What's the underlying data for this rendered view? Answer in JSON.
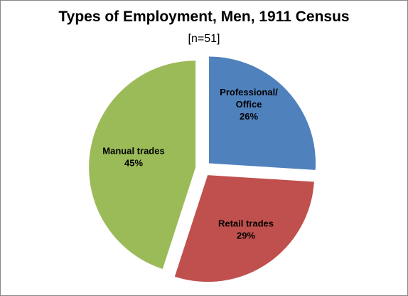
{
  "chart_data": {
    "type": "pie",
    "title": "Types of Employment, Men, 1911 Census",
    "subtitle": "[n=51]",
    "slices": [
      {
        "label_lines": [
          "Professional/",
          "Office"
        ],
        "value": 26,
        "value_label": "26%",
        "color": "#4F81BD",
        "exploded": true
      },
      {
        "label_lines": [
          "Retail trades"
        ],
        "value": 29,
        "value_label": "29%",
        "color": "#C0504D",
        "exploded": true
      },
      {
        "label_lines": [
          "Manual trades"
        ],
        "value": 45,
        "value_label": "45%",
        "color": "#9BBB59",
        "exploded": true
      }
    ],
    "legend": "none",
    "data_labels": "inside"
  }
}
